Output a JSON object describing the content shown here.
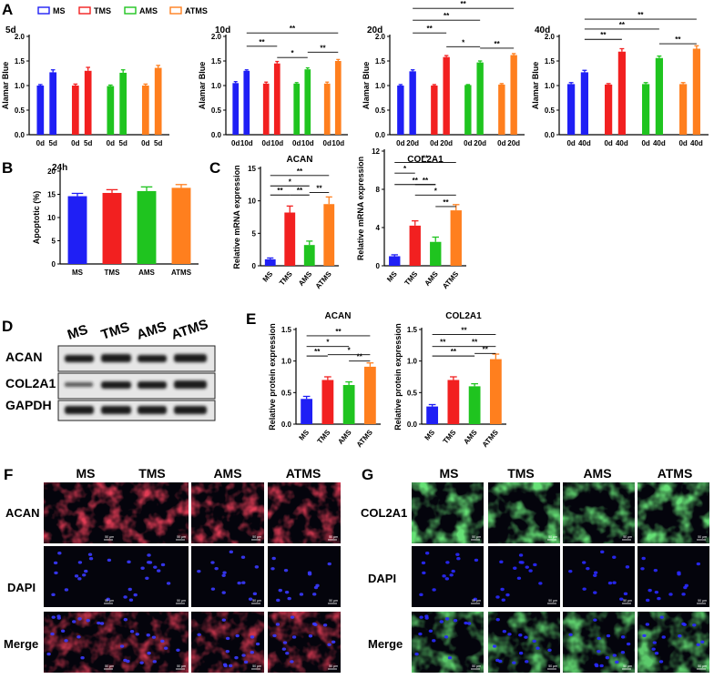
{
  "colors": {
    "MS": "#1f1ff5",
    "TMS": "#f22020",
    "AMS": "#1fc41f",
    "ATMS": "#ff7f1e",
    "axis": "#000000"
  },
  "panel_letters": [
    "A",
    "B",
    "C",
    "D",
    "E",
    "F",
    "G"
  ],
  "legend": [
    "MS",
    "TMS",
    "AMS",
    "ATMS"
  ],
  "chart_data": [
    {
      "id": "A-5d",
      "type": "bar",
      "title": "5d",
      "ylabel": "Alamar Blue",
      "ylim": [
        0,
        2.0
      ],
      "yticks": [
        "0.0",
        "0.5",
        "1.0",
        "1.5",
        "2.0"
      ],
      "categories": [
        "0d",
        "5d",
        "0d",
        "5d",
        "0d",
        "5d",
        "0d",
        "5d"
      ],
      "groups": [
        "MS",
        "MS",
        "TMS",
        "TMS",
        "AMS",
        "AMS",
        "ATMS",
        "ATMS"
      ],
      "values": [
        1.0,
        1.27,
        1.0,
        1.3,
        0.99,
        1.26,
        1.0,
        1.36
      ],
      "errors": [
        0.02,
        0.05,
        0.03,
        0.07,
        0.02,
        0.06,
        0.03,
        0.05
      ],
      "sig": []
    },
    {
      "id": "A-10d",
      "type": "bar",
      "title": "10d",
      "ylabel": "Alamar Blue",
      "ylim": [
        0,
        2.0
      ],
      "yticks": [
        "0.0",
        "0.5",
        "1.0",
        "1.5",
        "2.0"
      ],
      "categories": [
        "0d",
        "10d",
        "0d",
        "10d",
        "0d",
        "10d",
        "0d",
        "10d"
      ],
      "groups": [
        "MS",
        "MS",
        "TMS",
        "TMS",
        "AMS",
        "AMS",
        "ATMS",
        "ATMS"
      ],
      "values": [
        1.05,
        1.3,
        1.04,
        1.45,
        1.04,
        1.33,
        1.04,
        1.5
      ],
      "errors": [
        0.03,
        0.02,
        0.03,
        0.04,
        0.02,
        0.03,
        0.03,
        0.03
      ],
      "sig": [
        {
          "a": 1,
          "b": 7,
          "y": 2.07,
          "label": "**"
        },
        {
          "a": 1,
          "b": 3,
          "y": 1.8,
          "label": "**"
        },
        {
          "a": 3,
          "b": 5,
          "y": 1.57,
          "label": "*"
        },
        {
          "a": 5,
          "b": 7,
          "y": 1.68,
          "label": "**"
        }
      ]
    },
    {
      "id": "A-20d",
      "type": "bar",
      "title": "20d",
      "ylabel": "Alamar Blue",
      "ylim": [
        0,
        2.0
      ],
      "yticks": [
        "0.0",
        "0.5",
        "1.0",
        "1.5",
        "2.0"
      ],
      "categories": [
        "0d",
        "20d",
        "0d",
        "20d",
        "0d",
        "20d",
        "0d",
        "20d"
      ],
      "groups": [
        "MS",
        "MS",
        "TMS",
        "TMS",
        "AMS",
        "AMS",
        "ATMS",
        "ATMS"
      ],
      "values": [
        1.0,
        1.29,
        1.0,
        1.58,
        1.01,
        1.47,
        1.02,
        1.62
      ],
      "errors": [
        0.02,
        0.03,
        0.02,
        0.03,
        0.01,
        0.03,
        0.02,
        0.03
      ],
      "sig": [
        {
          "a": 1,
          "b": 7,
          "y": 2.57,
          "label": "**"
        },
        {
          "a": 1,
          "b": 5,
          "y": 2.33,
          "label": "**"
        },
        {
          "a": 1,
          "b": 3,
          "y": 2.07,
          "label": "**"
        },
        {
          "a": 3,
          "b": 5,
          "y": 1.79,
          "label": "*"
        },
        {
          "a": 5,
          "b": 7,
          "y": 1.76,
          "label": "**"
        }
      ]
    },
    {
      "id": "A-40d",
      "type": "bar",
      "title": "40d",
      "ylabel": "Alamar Blue",
      "ylim": [
        0,
        2.0
      ],
      "yticks": [
        "0.0",
        "0.5",
        "1.0",
        "1.5",
        "2.0"
      ],
      "categories": [
        "0d",
        "40d",
        "0d",
        "40d",
        "0d",
        "40d",
        "0d",
        "40d"
      ],
      "groups": [
        "MS",
        "MS",
        "TMS",
        "TMS",
        "AMS",
        "AMS",
        "ATMS",
        "ATMS"
      ],
      "values": [
        1.03,
        1.27,
        1.02,
        1.69,
        1.03,
        1.56,
        1.03,
        1.75
      ],
      "errors": [
        0.03,
        0.04,
        0.02,
        0.06,
        0.03,
        0.04,
        0.03,
        0.06
      ],
      "sig": [
        {
          "a": 1,
          "b": 7,
          "y": 2.35,
          "label": "**"
        },
        {
          "a": 1,
          "b": 5,
          "y": 2.15,
          "label": "**"
        },
        {
          "a": 1,
          "b": 3,
          "y": 1.94,
          "label": "**"
        },
        {
          "a": 5,
          "b": 7,
          "y": 1.85,
          "label": "**"
        }
      ]
    },
    {
      "id": "B",
      "type": "bar",
      "title": "24h",
      "ylabel": "Apoptotic (%)",
      "ylim": [
        0,
        20
      ],
      "yticks": [
        "0",
        "5",
        "10",
        "15",
        "20"
      ],
      "categories": [
        "MS",
        "TMS",
        "AMS",
        "ATMS"
      ],
      "groups": [
        "MS",
        "TMS",
        "AMS",
        "ATMS"
      ],
      "values": [
        14.6,
        15.3,
        15.7,
        16.4
      ],
      "errors": [
        0.6,
        0.7,
        0.9,
        0.7
      ],
      "sig": []
    },
    {
      "id": "C-ACAN",
      "type": "bar",
      "title": "ACAN",
      "ylabel": "Relative mRNA expression",
      "ylim": [
        0,
        15
      ],
      "yticks": [
        "0",
        "5",
        "10",
        "15"
      ],
      "categories": [
        "MS",
        "TMS",
        "AMS",
        "ATMS"
      ],
      "groups": [
        "MS",
        "TMS",
        "AMS",
        "ATMS"
      ],
      "values": [
        1.0,
        8.2,
        3.2,
        9.5
      ],
      "errors": [
        0.2,
        1.0,
        0.6,
        1.1
      ],
      "sig": [
        {
          "a": 0,
          "b": 3,
          "y": 13.9,
          "label": "**"
        },
        {
          "a": 0,
          "b": 2,
          "y": 12.3,
          "label": "*"
        },
        {
          "a": 0,
          "b": 1,
          "y": 10.9,
          "label": "**"
        },
        {
          "a": 1,
          "b": 2,
          "y": 10.9,
          "label": "**"
        },
        {
          "a": 2,
          "b": 3,
          "y": 11.3,
          "label": "**"
        }
      ]
    },
    {
      "id": "C-COL2A1",
      "type": "bar",
      "title": "COL2A1",
      "ylabel": "Relative mRNA expression",
      "ylim": [
        0,
        12
      ],
      "yticks": [
        "0",
        "4",
        "8",
        "12"
      ],
      "categories": [
        "MS",
        "TMS",
        "AMS",
        "ATMS"
      ],
      "groups": [
        "MS",
        "TMS",
        "AMS",
        "ATMS"
      ],
      "values": [
        1.0,
        4.2,
        2.5,
        5.8
      ],
      "errors": [
        0.15,
        0.5,
        0.5,
        0.6
      ],
      "sig": [
        {
          "a": 0,
          "b": 3,
          "y": 10.8,
          "label": "**"
        },
        {
          "a": 0,
          "b": 1,
          "y": 9.7,
          "label": "*"
        },
        {
          "a": 0,
          "b": 2,
          "y": 8.5,
          "label": "**"
        },
        {
          "a": 1,
          "b": 2,
          "y": 8.5,
          "label": "**"
        },
        {
          "a": 1,
          "b": 3,
          "y": 7.4,
          "label": "*"
        },
        {
          "a": 2,
          "b": 3,
          "y": 6.2,
          "label": "**"
        }
      ]
    },
    {
      "id": "E-ACAN",
      "type": "bar",
      "title": "ACAN",
      "ylabel": "Relative protein expression",
      "ylim": [
        0,
        1.5
      ],
      "yticks": [
        "0.0",
        "0.5",
        "1.0",
        "1.5"
      ],
      "categories": [
        "MS",
        "TMS",
        "AMS",
        "ATMS"
      ],
      "groups": [
        "MS",
        "TMS",
        "AMS",
        "ATMS"
      ],
      "values": [
        0.4,
        0.7,
        0.62,
        0.91
      ],
      "errors": [
        0.04,
        0.05,
        0.05,
        0.06
      ],
      "sig": [
        {
          "a": 0,
          "b": 3,
          "y": 1.4,
          "label": "**"
        },
        {
          "a": 0,
          "b": 2,
          "y": 1.23,
          "label": "*"
        },
        {
          "a": 0,
          "b": 1,
          "y": 1.08,
          "label": "**"
        },
        {
          "a": 1,
          "b": 3,
          "y": 1.1,
          "label": "*"
        },
        {
          "a": 2,
          "b": 3,
          "y": 1.0,
          "label": "**"
        }
      ]
    },
    {
      "id": "E-COL2A1",
      "type": "bar",
      "title": "COL2A1",
      "ylabel": "Relative protein expression",
      "ylim": [
        0,
        1.5
      ],
      "yticks": [
        "0.0",
        "0.5",
        "1.0",
        "1.5"
      ],
      "categories": [
        "MS",
        "TMS",
        "AMS",
        "ATMS"
      ],
      "groups": [
        "MS",
        "TMS",
        "AMS",
        "ATMS"
      ],
      "values": [
        0.28,
        0.7,
        0.6,
        1.03
      ],
      "errors": [
        0.03,
        0.05,
        0.04,
        0.08
      ],
      "sig": [
        {
          "a": 0,
          "b": 3,
          "y": 1.42,
          "label": "**"
        },
        {
          "a": 0,
          "b": 1,
          "y": 1.23,
          "label": "**"
        },
        {
          "a": 0,
          "b": 2,
          "y": 1.08,
          "label": "**"
        },
        {
          "a": 1,
          "b": 3,
          "y": 1.23,
          "label": "**"
        },
        {
          "a": 2,
          "b": 3,
          "y": 1.12,
          "label": "**"
        }
      ]
    }
  ],
  "western_blot": {
    "lanes": [
      "MS",
      "TMS",
      "AMS",
      "ATMS"
    ],
    "rows": [
      "ACAN",
      "COL2A1",
      "GAPDH"
    ]
  },
  "microscopy": {
    "F": {
      "columns": [
        "MS",
        "TMS",
        "AMS",
        "ATMS"
      ],
      "rows": [
        "ACAN",
        "DAPI",
        "Merge"
      ],
      "scale_bar": "50 μm"
    },
    "G": {
      "columns": [
        "MS",
        "TMS",
        "AMS",
        "ATMS"
      ],
      "rows": [
        "COL2A1",
        "DAPI",
        "Merge"
      ],
      "scale_bar": "50 μm"
    }
  }
}
